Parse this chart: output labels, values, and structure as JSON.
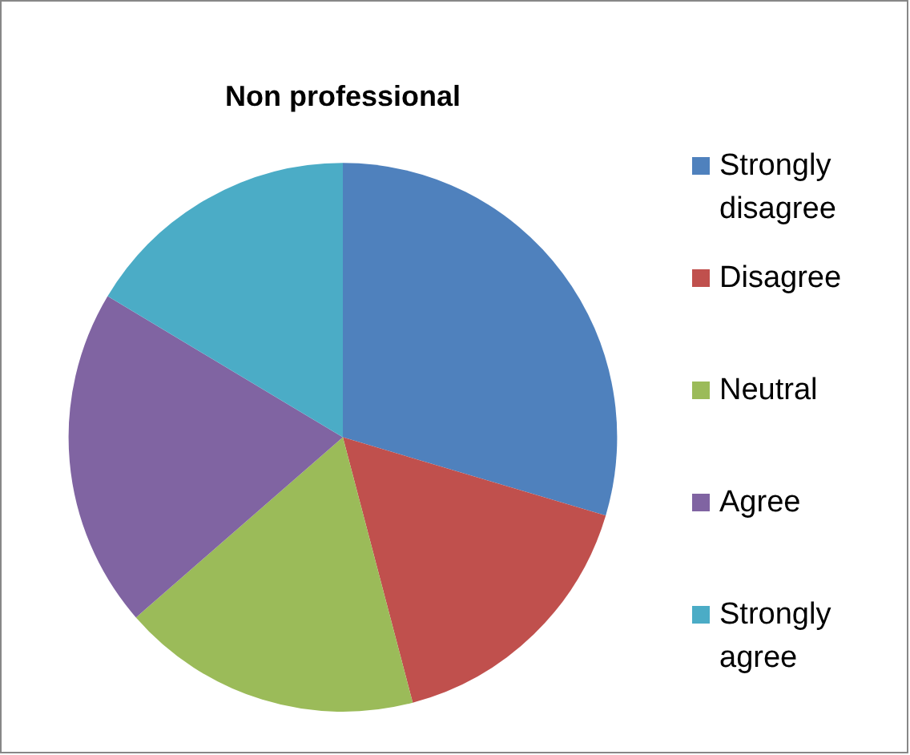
{
  "chart_data": {
    "type": "pie",
    "title": "Non professional",
    "categories": [
      "Strongly disagree",
      "Disagree",
      "Neutral",
      "Agree",
      "Strongly agree"
    ],
    "values": [
      29.6,
      16.3,
      17.7,
      20.0,
      16.4
    ],
    "colors": [
      "#4f81bd",
      "#c0504d",
      "#9bbb59",
      "#8064a2",
      "#4bacc6"
    ],
    "legend": "right"
  }
}
